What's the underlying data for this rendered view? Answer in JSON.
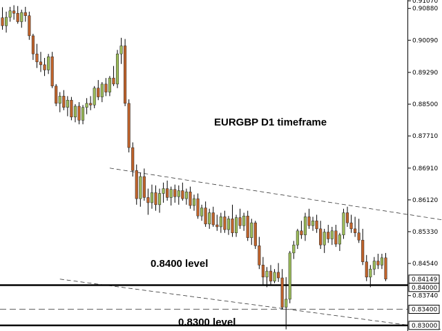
{
  "chart_data": {
    "type": "candlestick",
    "symbol_timeframe": "EURGBP D1 timeframe",
    "y_range": [
      0.8286,
      0.9109
    ],
    "y_ticks": [
      "0.91070",
      "0.90880",
      "0.90090",
      "0.89290",
      "0.88500",
      "0.87710",
      "0.86910",
      "0.86120",
      "0.85330",
      "0.84540",
      "0.83740"
    ],
    "price_tags": [
      {
        "label": "0.84149",
        "value": 0.84149
      },
      {
        "label": "0.84000",
        "value": 0.84
      },
      {
        "label": "0.83400",
        "value": 0.834
      },
      {
        "label": "0.83000",
        "value": 0.83
      }
    ],
    "levels": [
      {
        "value": 0.84,
        "style": "solid",
        "label": "0.8400 level"
      },
      {
        "value": 0.834,
        "style": "dashed",
        "label": ""
      },
      {
        "value": 0.83,
        "style": "solid",
        "label": "0.8300 level"
      }
    ],
    "trendlines": [
      {
        "from": [
          28,
          0.8691
        ],
        "to": [
          115,
          0.8562
        ]
      },
      {
        "from": [
          15,
          0.8415
        ],
        "to": [
          115,
          0.8289
        ]
      }
    ],
    "colors": {
      "bull": "#9bbb59",
      "bear": "#c0632b",
      "wick": "#000000"
    },
    "candles": [
      [
        0.9065,
        0.9091,
        0.9035,
        0.9045
      ],
      [
        0.9045,
        0.908,
        0.9028,
        0.9066
      ],
      [
        0.9066,
        0.9092,
        0.9055,
        0.9082
      ],
      [
        0.9082,
        0.9096,
        0.906,
        0.9076
      ],
      [
        0.9076,
        0.9094,
        0.905,
        0.9055
      ],
      [
        0.9055,
        0.9085,
        0.904,
        0.9078
      ],
      [
        0.9078,
        0.9092,
        0.9055,
        0.907
      ],
      [
        0.907,
        0.908,
        0.901,
        0.902
      ],
      [
        0.902,
        0.9025,
        0.896,
        0.8975
      ],
      [
        0.8975,
        0.9,
        0.894,
        0.8955
      ],
      [
        0.8955,
        0.898,
        0.893,
        0.8948
      ],
      [
        0.8948,
        0.8965,
        0.892,
        0.8935
      ],
      [
        0.8935,
        0.8975,
        0.8925,
        0.8968
      ],
      [
        0.8968,
        0.898,
        0.889,
        0.8895
      ],
      [
        0.8895,
        0.89,
        0.8845,
        0.8852
      ],
      [
        0.8852,
        0.888,
        0.883,
        0.887
      ],
      [
        0.887,
        0.8885,
        0.8835,
        0.8842
      ],
      [
        0.8842,
        0.887,
        0.882,
        0.886
      ],
      [
        0.886,
        0.8868,
        0.881,
        0.8818
      ],
      [
        0.8818,
        0.885,
        0.8805,
        0.8845
      ],
      [
        0.8845,
        0.8855,
        0.88,
        0.881
      ],
      [
        0.881,
        0.8848,
        0.88,
        0.8842
      ],
      [
        0.8842,
        0.8865,
        0.8825,
        0.8852
      ],
      [
        0.8852,
        0.887,
        0.8835,
        0.8848
      ],
      [
        0.8848,
        0.8895,
        0.884,
        0.889
      ],
      [
        0.889,
        0.891,
        0.886,
        0.8868
      ],
      [
        0.8868,
        0.8905,
        0.8855,
        0.89
      ],
      [
        0.89,
        0.8915,
        0.887,
        0.888
      ],
      [
        0.888,
        0.892,
        0.887,
        0.8915
      ],
      [
        0.8915,
        0.8945,
        0.8895,
        0.89
      ],
      [
        0.89,
        0.8985,
        0.889,
        0.8975
      ],
      [
        0.8975,
        0.9015,
        0.895,
        0.8995
      ],
      [
        0.8995,
        0.9012,
        0.8845,
        0.8852
      ],
      [
        0.8852,
        0.8862,
        0.873,
        0.8742
      ],
      [
        0.8742,
        0.8755,
        0.867,
        0.8685
      ],
      [
        0.8685,
        0.87,
        0.86,
        0.8615
      ],
      [
        0.8615,
        0.868,
        0.8595,
        0.867
      ],
      [
        0.867,
        0.869,
        0.861,
        0.8618
      ],
      [
        0.8618,
        0.864,
        0.8575,
        0.8605
      ],
      [
        0.8605,
        0.865,
        0.859,
        0.863
      ],
      [
        0.863,
        0.8648,
        0.8585,
        0.86
      ],
      [
        0.86,
        0.864,
        0.858,
        0.8628
      ],
      [
        0.8628,
        0.8655,
        0.8605,
        0.864
      ],
      [
        0.864,
        0.866,
        0.861,
        0.8618
      ],
      [
        0.8618,
        0.8645,
        0.8598,
        0.8638
      ],
      [
        0.8638,
        0.865,
        0.8605,
        0.862
      ],
      [
        0.862,
        0.8648,
        0.86,
        0.8635
      ],
      [
        0.8635,
        0.8655,
        0.861,
        0.8615
      ],
      [
        0.8615,
        0.864,
        0.86,
        0.8632
      ],
      [
        0.8632,
        0.8645,
        0.859,
        0.8598
      ],
      [
        0.8598,
        0.8625,
        0.8585,
        0.8615
      ],
      [
        0.8615,
        0.8628,
        0.8565,
        0.8572
      ],
      [
        0.8572,
        0.86,
        0.856,
        0.8592
      ],
      [
        0.8592,
        0.8608,
        0.8545,
        0.8552
      ],
      [
        0.8552,
        0.859,
        0.854,
        0.858
      ],
      [
        0.858,
        0.8595,
        0.8545,
        0.855
      ],
      [
        0.855,
        0.8575,
        0.8535,
        0.8545
      ],
      [
        0.8545,
        0.858,
        0.853,
        0.857
      ],
      [
        0.857,
        0.8585,
        0.853,
        0.8538
      ],
      [
        0.8538,
        0.8572,
        0.8525,
        0.8565
      ],
      [
        0.8565,
        0.86,
        0.852,
        0.853
      ],
      [
        0.853,
        0.8575,
        0.852,
        0.8568
      ],
      [
        0.8568,
        0.859,
        0.854,
        0.8548
      ],
      [
        0.8548,
        0.858,
        0.8535,
        0.8572
      ],
      [
        0.8572,
        0.8585,
        0.851,
        0.8518
      ],
      [
        0.8518,
        0.8565,
        0.85,
        0.8555
      ],
      [
        0.8555,
        0.856,
        0.849,
        0.8498
      ],
      [
        0.8498,
        0.852,
        0.844,
        0.845
      ],
      [
        0.845,
        0.847,
        0.84,
        0.842
      ],
      [
        0.842,
        0.8445,
        0.8395,
        0.8435
      ],
      [
        0.8435,
        0.845,
        0.84,
        0.841
      ],
      [
        0.841,
        0.844,
        0.8405,
        0.8432
      ],
      [
        0.8432,
        0.8455,
        0.8408,
        0.8418
      ],
      [
        0.8418,
        0.844,
        0.834,
        0.8345
      ],
      [
        0.8345,
        0.842,
        0.829,
        0.8365
      ],
      [
        0.8365,
        0.8485,
        0.8355,
        0.848
      ],
      [
        0.848,
        0.851,
        0.8465,
        0.85
      ],
      [
        0.85,
        0.854,
        0.849,
        0.8535
      ],
      [
        0.8535,
        0.856,
        0.8515,
        0.8525
      ],
      [
        0.8525,
        0.858,
        0.851,
        0.857
      ],
      [
        0.857,
        0.859,
        0.854,
        0.8548
      ],
      [
        0.8548,
        0.857,
        0.8535,
        0.856
      ],
      [
        0.856,
        0.8575,
        0.853,
        0.854
      ],
      [
        0.854,
        0.856,
        0.849,
        0.85
      ],
      [
        0.85,
        0.854,
        0.848,
        0.8532
      ],
      [
        0.8532,
        0.855,
        0.8505,
        0.8515
      ],
      [
        0.8515,
        0.8545,
        0.85,
        0.8535
      ],
      [
        0.8535,
        0.855,
        0.8495,
        0.8502
      ],
      [
        0.8502,
        0.853,
        0.8485,
        0.8525
      ],
      [
        0.8525,
        0.859,
        0.8515,
        0.858
      ],
      [
        0.858,
        0.8595,
        0.8545,
        0.8555
      ],
      [
        0.8555,
        0.8575,
        0.853,
        0.854
      ],
      [
        0.854,
        0.857,
        0.852,
        0.853
      ],
      [
        0.853,
        0.8565,
        0.8505,
        0.8512
      ],
      [
        0.8512,
        0.854,
        0.845,
        0.8458
      ],
      [
        0.8458,
        0.8475,
        0.841,
        0.842
      ],
      [
        0.842,
        0.845,
        0.8395,
        0.844
      ],
      [
        0.844,
        0.847,
        0.8425,
        0.846
      ],
      [
        0.846,
        0.8478,
        0.844,
        0.845
      ],
      [
        0.845,
        0.8478,
        0.844,
        0.8468
      ],
      [
        0.8468,
        0.848,
        0.841,
        0.8415
      ]
    ]
  }
}
